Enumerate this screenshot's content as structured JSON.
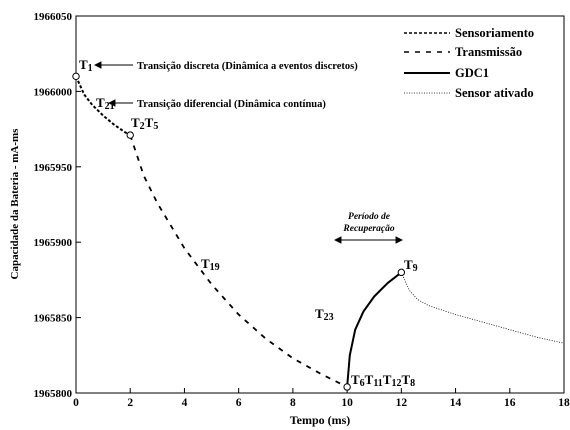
{
  "chart_data": {
    "type": "line",
    "xlabel": "Tempo (ms)",
    "ylabel": "Capacidade da Bateria - mA-ms",
    "xlim": [
      0,
      18
    ],
    "ylim": [
      1965800,
      1966050
    ],
    "x_ticks": [
      0,
      2,
      4,
      6,
      8,
      10,
      12,
      14,
      16,
      18
    ],
    "y_ticks": [
      1965800,
      1965850,
      1965900,
      1965950,
      1966000,
      1966050
    ],
    "grid": false,
    "legend_position": "top-right",
    "series": [
      {
        "name": "Sensoriamento",
        "style": "dashed-short",
        "x": [
          0,
          0.3,
          0.6,
          1.0,
          1.4,
          1.8,
          2.0
        ],
        "y": [
          1966010,
          1965998,
          1965991,
          1965984,
          1965978,
          1965973,
          1965971
        ]
      },
      {
        "name": "Transmissão",
        "style": "dashed-long",
        "x": [
          2.0,
          2.5,
          3,
          4,
          5,
          6,
          7,
          8,
          9,
          10
        ],
        "y": [
          1965971,
          1965944,
          1965926,
          1965896,
          1965872,
          1965852,
          1965836,
          1965823,
          1965813,
          1965804
        ]
      },
      {
        "name": "GDC1",
        "style": "solid",
        "x": [
          10,
          10.1,
          10.3,
          10.6,
          11.0,
          11.5,
          12.0
        ],
        "y": [
          1965804,
          1965825,
          1965842,
          1965854,
          1965864,
          1965873,
          1965880
        ]
      },
      {
        "name": "Sensor ativado",
        "style": "dotted-thin",
        "x": [
          12,
          12.3,
          12.6,
          13,
          14,
          15,
          16,
          17,
          18
        ],
        "y": [
          1965880,
          1965868,
          1965862,
          1965858,
          1965852,
          1965847,
          1965842,
          1965837,
          1965833
        ]
      }
    ],
    "markers": [
      {
        "label": "T1",
        "x": 0,
        "y": 1966010
      },
      {
        "label": "T2T5",
        "x": 2,
        "y": 1965971
      },
      {
        "label": "T9",
        "x": 12,
        "y": 1965880
      },
      {
        "label": "T6T11T12T8",
        "x": 10,
        "y": 1965804
      }
    ],
    "annotations": [
      {
        "text": "T1",
        "x": 0.15,
        "y": 1966010
      },
      {
        "text": "T21",
        "x": 0.75,
        "y": 1965988
      },
      {
        "text": "T2T5",
        "x": 2.0,
        "y": 1965971
      },
      {
        "text": "T19",
        "x": 4.65,
        "y": 1965887
      },
      {
        "text": "T23",
        "x": 10.05,
        "y": 1965859
      },
      {
        "text": "T9",
        "x": 12.05,
        "y": 1965880
      },
      {
        "text": "T6T11T12T8",
        "x": 10.05,
        "y": 1965804
      },
      {
        "text": "Transição discreta (Dinâmica a eventos discretos)",
        "x": 2.5,
        "y": 1966010
      },
      {
        "text": "Transição diferencial (Dinâmica contínua)",
        "x": 2.4,
        "y": 1965988
      },
      {
        "text": "Período de",
        "x": 11.0,
        "y": 1965911
      },
      {
        "text": "Recuperação",
        "x": 11.0,
        "y": 1965905
      }
    ],
    "recovery_interval": {
      "x_start": 10,
      "x_end": 12
    }
  }
}
